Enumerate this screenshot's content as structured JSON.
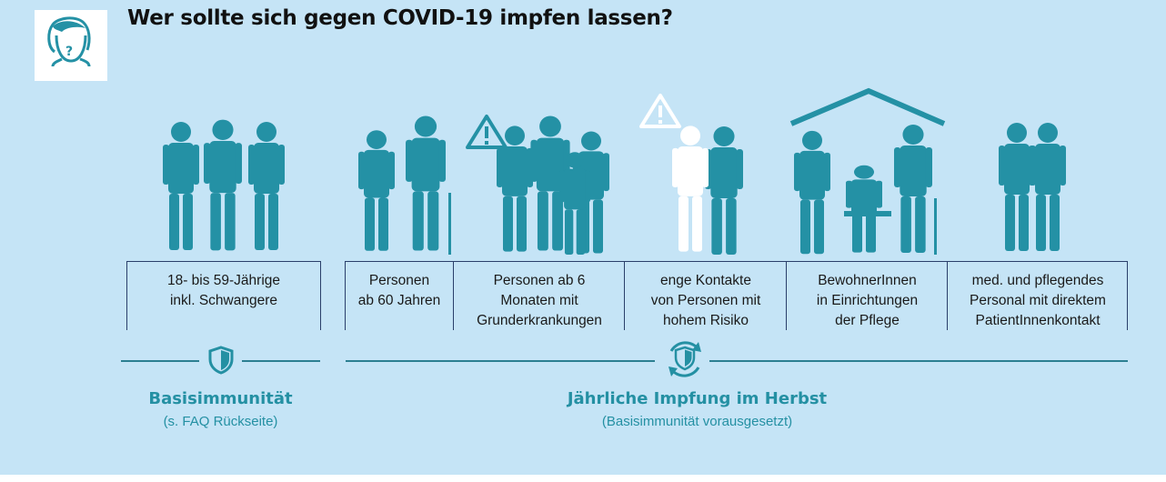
{
  "title": "Wer sollte sich gegen COVID-19 impfen lassen?",
  "groups": [
    {
      "lines": [
        "18- bis 59-Jährige",
        "inkl. Schwangere"
      ]
    },
    {
      "lines": [
        "Personen",
        "ab 60 Jahren"
      ]
    },
    {
      "lines": [
        "Personen ab 6",
        "Monaten mit",
        "Grunderkrankungen"
      ]
    },
    {
      "lines": [
        "enge Kontakte",
        "von Personen mit",
        "hohem Risiko"
      ]
    },
    {
      "lines": [
        "BewohnerInnen",
        "in Einrichtungen",
        "der Pflege"
      ]
    },
    {
      "lines": [
        "med. und pflegendes",
        "Personal mit direktem",
        "PatientInnenkontakt"
      ]
    }
  ],
  "sections": {
    "basis": {
      "heading": "Basisimmunität",
      "sub": "(s. FAQ Rückseite)",
      "icon": "shield-icon"
    },
    "annual": {
      "heading": "Jährliche Impfung im Herbst",
      "sub": "(Basisimmunität vorausgesetzt)",
      "icon": "shield-refresh-icon"
    }
  },
  "icons": [
    "person-question-icon",
    "warning-icon",
    "people-figures"
  ],
  "colors": {
    "background": "#c5e4f6",
    "figure": "#2491a5",
    "accent": "#2490a3",
    "line": "#2a3f6a"
  }
}
